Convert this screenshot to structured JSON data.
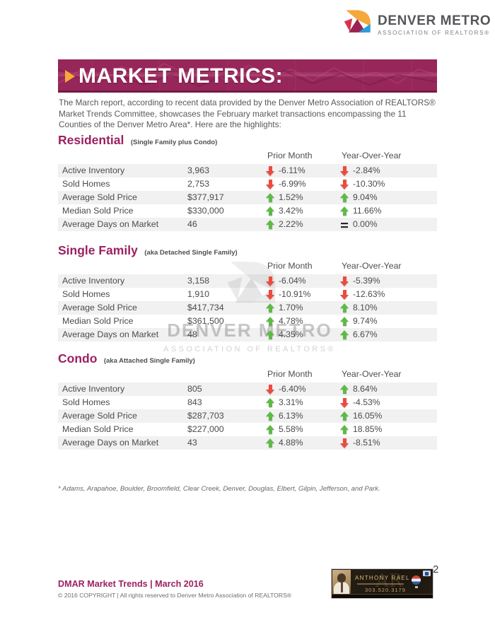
{
  "logo": {
    "title": "DENVER METRO",
    "subtitle": "ASSOCIATION OF REALTORS®"
  },
  "banner": {
    "title": "MARKET METRICS:"
  },
  "intro": "The March report, according to recent data provided by the Denver Metro Association of REALTORS®\nMarket Trends Committee,  showcases the February market transactions encompassing the 11\nCounties of the Denver Metro Area*. Here are the highlights:",
  "columns": {
    "prior": "Prior Month",
    "yoy": "Year-Over-Year"
  },
  "sections": [
    {
      "title": "Residential",
      "subtitle": "(Single Family plus Condo)",
      "rows": [
        {
          "label": "Active Inventory",
          "value": "3,963",
          "prior": {
            "dir": "down",
            "text": "-6.11%"
          },
          "yoy": {
            "dir": "down",
            "text": "-2.84%"
          }
        },
        {
          "label": "Sold Homes",
          "value": "2,753",
          "prior": {
            "dir": "down",
            "text": "-6.99%"
          },
          "yoy": {
            "dir": "down",
            "text": "-10.30%"
          }
        },
        {
          "label": "Average Sold Price",
          "value": "$377,917",
          "prior": {
            "dir": "up",
            "text": "1.52%"
          },
          "yoy": {
            "dir": "up",
            "text": "9.04%"
          }
        },
        {
          "label": "Median Sold Price",
          "value": "$330,000",
          "prior": {
            "dir": "up",
            "text": "3.42%"
          },
          "yoy": {
            "dir": "up",
            "text": "11.66%"
          }
        },
        {
          "label": "Average Days on Market",
          "value": "46",
          "prior": {
            "dir": "up",
            "text": "2.22%"
          },
          "yoy": {
            "dir": "equal",
            "text": "0.00%"
          }
        }
      ]
    },
    {
      "title": "Single Family",
      "subtitle": "(aka Detached Single Family)",
      "rows": [
        {
          "label": "Active Inventory",
          "value": "3,158",
          "prior": {
            "dir": "down",
            "text": "-6.04%"
          },
          "yoy": {
            "dir": "down",
            "text": "-5.39%"
          }
        },
        {
          "label": "Sold Homes",
          "value": "1,910",
          "prior": {
            "dir": "down",
            "text": "-10.91%"
          },
          "yoy": {
            "dir": "down",
            "text": "-12.63%"
          }
        },
        {
          "label": "Average Sold Price",
          "value": "$417,734",
          "prior": {
            "dir": "up",
            "text": "1.70%"
          },
          "yoy": {
            "dir": "up",
            "text": "8.10%"
          }
        },
        {
          "label": "Median Sold Price",
          "value": "$361,500",
          "prior": {
            "dir": "up",
            "text": "4.78%"
          },
          "yoy": {
            "dir": "up",
            "text": "9.74%"
          }
        },
        {
          "label": "Average Days on Market",
          "value": "48",
          "prior": {
            "dir": "up",
            "text": "4.35%"
          },
          "yoy": {
            "dir": "up",
            "text": "6.67%"
          }
        }
      ]
    },
    {
      "title": "Condo",
      "subtitle": "(aka Attached Single Family)",
      "rows": [
        {
          "label": "Active Inventory",
          "value": "805",
          "prior": {
            "dir": "down",
            "text": "-6.40%"
          },
          "yoy": {
            "dir": "up",
            "text": "8.64%"
          }
        },
        {
          "label": "Sold Homes",
          "value": "843",
          "prior": {
            "dir": "up",
            "text": "3.31%"
          },
          "yoy": {
            "dir": "down",
            "text": "-4.53%"
          }
        },
        {
          "label": "Average Sold Price",
          "value": "$287,703",
          "prior": {
            "dir": "up",
            "text": "6.13%"
          },
          "yoy": {
            "dir": "up",
            "text": "16.05%"
          }
        },
        {
          "label": "Median Sold Price",
          "value": "$227,000",
          "prior": {
            "dir": "up",
            "text": "5.58%"
          },
          "yoy": {
            "dir": "up",
            "text": "18.85%"
          }
        },
        {
          "label": "Average Days on Market",
          "value": "43",
          "prior": {
            "dir": "up",
            "text": "4.88%"
          },
          "yoy": {
            "dir": "down",
            "text": "-8.51%"
          }
        }
      ]
    }
  ],
  "watermark": {
    "title": "DENVER METRO",
    "subtitle": "ASSOCIATION OF REALTORS®"
  },
  "footnote": "* Adams, Arapahoe, Boulder, Broomfield, Clear Creek, Denver, Douglas, Elbert, Gilpin, Jefferson, and Park.",
  "footer": {
    "title": "DMAR Market Trends | March 2016",
    "copyright": "© 2016 COPYRIGHT | All rights reserved to Denver Metro Association of REALTORS®",
    "page_number": "2"
  },
  "ad": {
    "name": "ANTHONY RAEL",
    "phone": "303.520.3179",
    "monogram": "AR"
  },
  "colors": {
    "accent_magenta": "#9c2161",
    "banner_bg": "#97265a",
    "up_green": "#5eba47",
    "down_red": "#ec4b40",
    "bullet_orange": "#f6a838",
    "row_stripe": "#ededee",
    "body_text": "#58595b"
  }
}
